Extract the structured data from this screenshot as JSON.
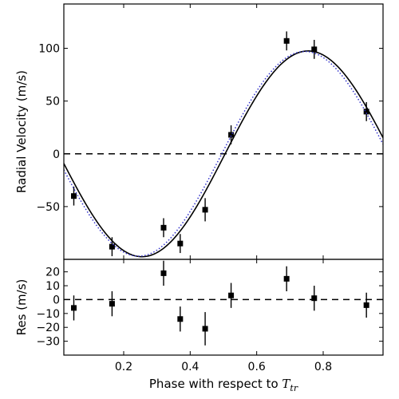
{
  "chart_data": [
    {
      "type": "scatter",
      "title": "",
      "xlabel": "",
      "ylabel": "Radial Velocity (m/s)",
      "xlim": [
        0.02,
        0.98
      ],
      "ylim": [
        -100,
        142
      ],
      "xticks": [
        0.2,
        0.4,
        0.6,
        0.8
      ],
      "yticks": [
        -50,
        0,
        50,
        100
      ],
      "ytick_labels": [
        "−50",
        "0",
        "50",
        "100"
      ],
      "grid": false,
      "reference_line": {
        "y": 0,
        "style": "dashed",
        "color": "#000000"
      },
      "series": [
        {
          "kind": "points",
          "color": "#000000",
          "marker": "square",
          "x": [
            0.05,
            0.165,
            0.32,
            0.37,
            0.445,
            0.523,
            0.69,
            0.773,
            0.93
          ],
          "y": [
            -40,
            -88,
            -70,
            -85,
            -53,
            18,
            107,
            99,
            40
          ],
          "err": [
            9,
            9,
            9,
            9,
            11,
            9,
            9,
            9,
            9
          ]
        },
        {
          "kind": "curve",
          "color": "#000000",
          "style": "solid",
          "amplitude": 97.5,
          "phase_of_max": 0.755
        },
        {
          "kind": "curve",
          "color": "#3333cc",
          "style": "dotted",
          "amplitude": 97,
          "phase_of_max": 0.745
        }
      ]
    },
    {
      "type": "scatter",
      "title": "",
      "xlabel": "Phase with respect to ",
      "xlabel_symbol": "T",
      "xlabel_subscript": "tr",
      "ylabel": "Res (m/s)",
      "xlim": [
        0.02,
        0.98
      ],
      "ylim": [
        -40,
        29
      ],
      "xticks": [
        0.2,
        0.4,
        0.6,
        0.8
      ],
      "xtick_labels": [
        "0.2",
        "0.4",
        "0.6",
        "0.8"
      ],
      "yticks": [
        -30,
        -20,
        -10,
        0,
        10,
        20
      ],
      "ytick_labels": [
        "−30",
        "−20",
        "−10",
        "0",
        "10",
        "20"
      ],
      "grid": false,
      "reference_line": {
        "y": 0,
        "style": "dashed",
        "color": "#000000"
      },
      "series": [
        {
          "kind": "points",
          "color": "#000000",
          "marker": "square",
          "x": [
            0.05,
            0.165,
            0.32,
            0.37,
            0.445,
            0.523,
            0.69,
            0.773,
            0.93
          ],
          "y": [
            -6,
            -3,
            19,
            -14,
            -21,
            3,
            15,
            1,
            -4
          ],
          "err": [
            9,
            9,
            9,
            9,
            12,
            9,
            9,
            9,
            9
          ]
        }
      ]
    }
  ]
}
